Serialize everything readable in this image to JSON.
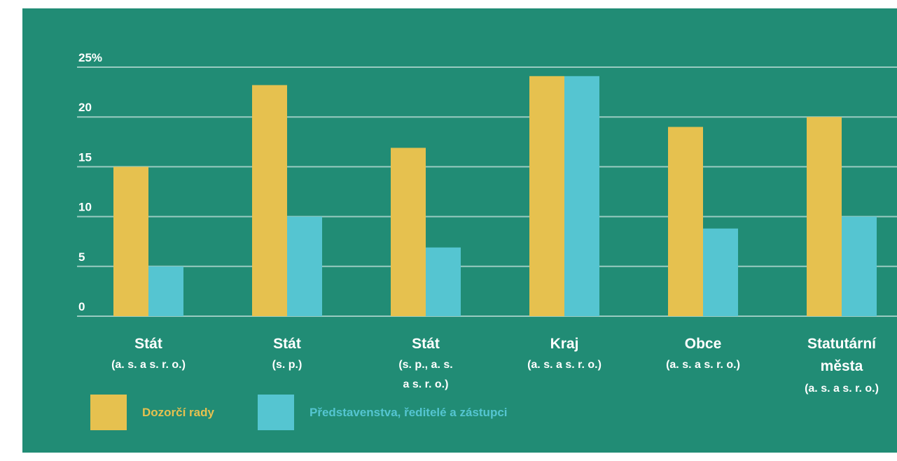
{
  "chart_data": {
    "type": "bar",
    "categories": [
      [
        "Stát",
        "(a. s. a s. r. o.)"
      ],
      [
        "Stát",
        "(s. p.)"
      ],
      [
        "Stát",
        "(s. p., a. s.",
        "a s. r. o.)"
      ],
      [
        "Kraj",
        "(a. s. a s. r. o.)"
      ],
      [
        "Obce",
        "(a. s. a s. r. o.)"
      ],
      [
        "Statutární",
        "města",
        "(a. s. a s. r. o.)"
      ]
    ],
    "series": [
      {
        "name": "Dozorčí rady",
        "color": "#e6c14f",
        "values": [
          15,
          23.2,
          16.9,
          24.1,
          19,
          20
        ]
      },
      {
        "name": "Představenstva, ředitelé a zástupci",
        "color": "#55c5d1",
        "values": [
          5,
          10,
          6.9,
          24.1,
          8.8,
          10
        ]
      }
    ],
    "y_ticks": [
      "0",
      "5",
      "10",
      "15",
      "20",
      "25%"
    ],
    "y_tick_values": [
      0,
      5,
      10,
      15,
      20,
      25
    ],
    "ylim": [
      0,
      25
    ],
    "grid": true,
    "legend_position": "bottom-left",
    "background": "#218c75"
  }
}
